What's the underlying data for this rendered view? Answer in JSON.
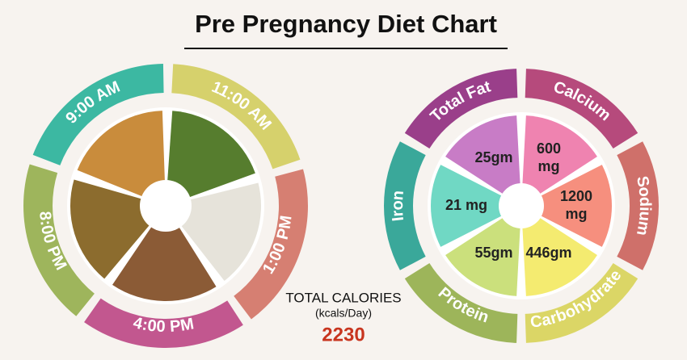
{
  "title": "Pre Pregnancy Diet Chart",
  "meal_schedule": {
    "segments": [
      {
        "time": "11:00 AM",
        "color": "#d6d16c",
        "photo_color": "#567d2e"
      },
      {
        "time": "1:00 PM",
        "color": "#d67f72",
        "photo_color": "#e6e3da"
      },
      {
        "time": "4:00 PM",
        "color": "#c2578f",
        "photo_color": "#8b5b36"
      },
      {
        "time": "8:00 PM",
        "color": "#9eb55c",
        "photo_color": "#8c6c2e"
      },
      {
        "time": "9:00 AM",
        "color": "#3cb8a2",
        "photo_color": "#c98c3c"
      }
    ]
  },
  "nutrients": {
    "segments": [
      {
        "name": "Calcium",
        "amount": [
          "600",
          "mg"
        ],
        "color": "#b64a7c",
        "inner_color": "#ef83b0"
      },
      {
        "name": "Sodium",
        "amount": [
          "1200",
          "mg"
        ],
        "color": "#cf706a",
        "inner_color": "#f68f7e"
      },
      {
        "name": "Carbohydrate",
        "amount": [
          "446gm"
        ],
        "color": "#dbd666",
        "inner_color": "#f4eb70"
      },
      {
        "name": "Protein",
        "amount": [
          "55gm"
        ],
        "color": "#9db55a",
        "inner_color": "#cbe07c"
      },
      {
        "name": "Iron",
        "amount": [
          "21 mg"
        ],
        "color": "#3aa89a",
        "inner_color": "#70d8c4"
      },
      {
        "name": "Total Fat",
        "amount": [
          "25gm"
        ],
        "color": "#9a3f8a",
        "inner_color": "#c87cc6"
      }
    ]
  },
  "total_calories": {
    "label": "TOTAL CALORIES",
    "unit": "(kcals/Day)",
    "value": 2230
  }
}
